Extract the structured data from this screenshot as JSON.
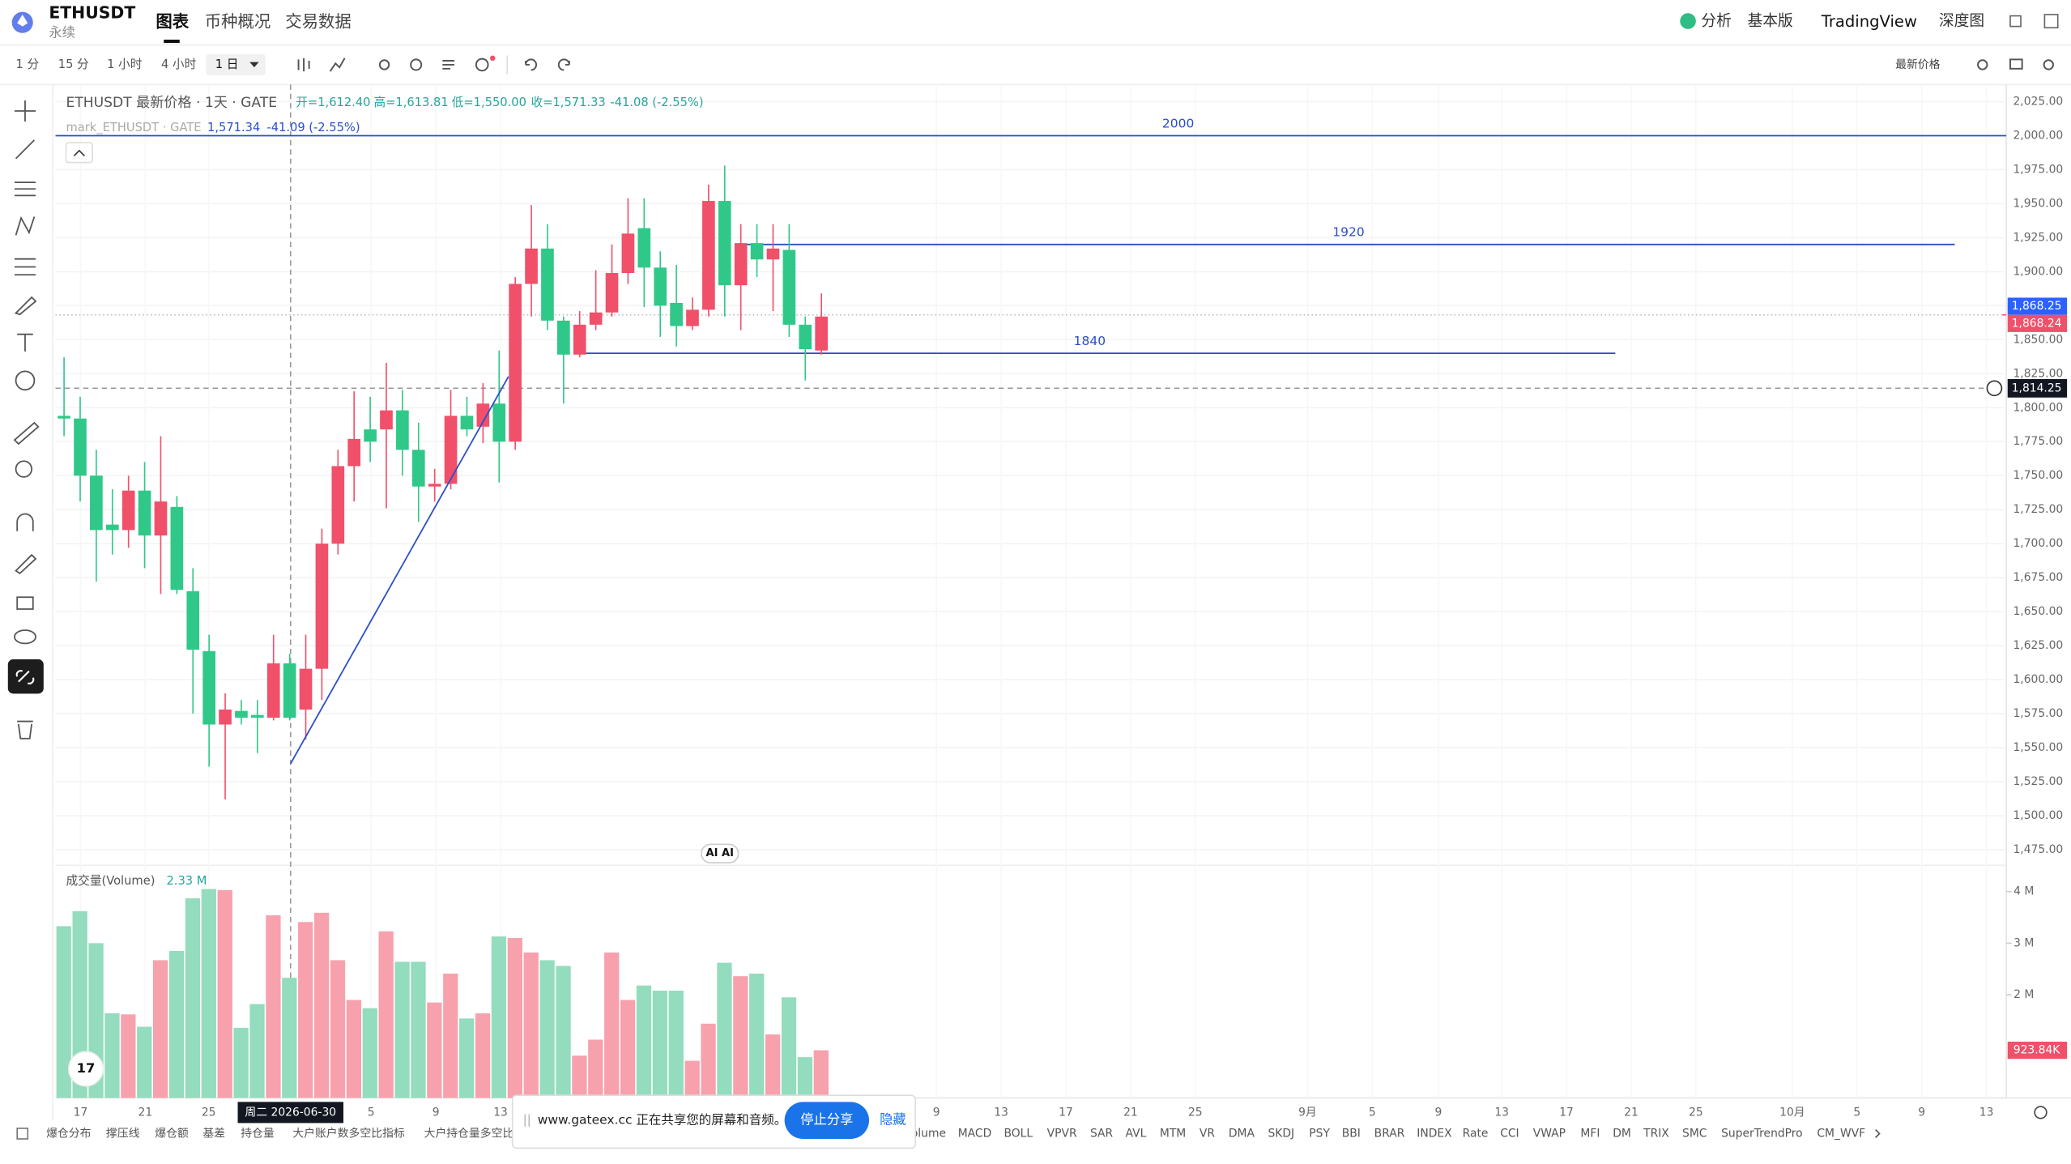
{
  "header": {
    "symbol": "ETHUSDT",
    "contract": "永续",
    "tabs": [
      "图表",
      "币种概况",
      "交易数据"
    ],
    "right": [
      "分析",
      "基本版",
      "TradingView",
      "深度图"
    ]
  },
  "toolbar": {
    "intervals": [
      "1 分",
      "15 分",
      "1 小时",
      "4 小时",
      "1 日"
    ],
    "price_source": "最新价格"
  },
  "legend": {
    "title": "ETHUSDT 最新价格 · 1天 · GATE",
    "ohlc": [
      "开=1,612.40",
      "高=1,613.81",
      "低=1,550.00",
      "收=1,571.33",
      "-41.08 (-2.55%)"
    ],
    "mark_title": "mark_ETHUSDT · GATE",
    "mark_price": "1,571.34",
    "mark_change": "-41.09 (-2.55%)"
  },
  "chart_data": {
    "type": "candlestick",
    "up_color": "#f0506a",
    "down_color": "#30c888",
    "level_color": "#2a4fc9",
    "ylim": [
      1463.4,
      2033.7
    ],
    "yticks": [
      {
        "value": 2025,
        "label": "2,025.00"
      },
      {
        "value": 2000,
        "label": "2,000.00"
      },
      {
        "value": 1975,
        "label": "1,975.00"
      },
      {
        "value": 1950,
        "label": "1,950.00"
      },
      {
        "value": 1925,
        "label": "1,925.00"
      },
      {
        "value": 1900,
        "label": "1,900.00"
      },
      {
        "value": 1875,
        "label": "1,875.00"
      },
      {
        "value": 1850,
        "label": "1,850.00"
      },
      {
        "value": 1825,
        "label": "1,825.00"
      },
      {
        "value": 1800,
        "label": "1,800.00"
      },
      {
        "value": 1775,
        "label": "1,775.00"
      },
      {
        "value": 1750,
        "label": "1,750.00"
      },
      {
        "value": 1725,
        "label": "1,725.00"
      },
      {
        "value": 1700,
        "label": "1,700.00"
      },
      {
        "value": 1675,
        "label": "1,675.00"
      },
      {
        "value": 1650,
        "label": "1,650.00"
      },
      {
        "value": 1625,
        "label": "1,625.00"
      },
      {
        "value": 1600,
        "label": "1,600.00"
      },
      {
        "value": 1575,
        "label": "1,575.00"
      },
      {
        "value": 1550,
        "label": "1,550.00"
      },
      {
        "value": 1525,
        "label": "1,525.00"
      },
      {
        "value": 1500,
        "label": "1,500.00"
      },
      {
        "value": 1475,
        "label": "1,475.00"
      }
    ],
    "open": [
      1794,
      1792,
      1750,
      1714,
      1710,
      1739,
      1706,
      1727,
      1665,
      1621,
      1567,
      1577,
      1574,
      1572,
      1612,
      1578,
      1608,
      1700,
      1757,
      1784,
      1784,
      1798,
      1769,
      1742,
      1744,
      1794,
      1786,
      1803,
      1775,
      1891,
      1917,
      1864,
      1839,
      1861,
      1870,
      1899,
      1932,
      1903,
      1877,
      1860,
      1872,
      1952,
      1890,
      1921,
      1909,
      1916,
      1861,
      1842
    ],
    "high": [
      1837,
      1808,
      1769,
      1740,
      1750,
      1760,
      1779,
      1735,
      1682,
      1633,
      1590,
      1585,
      1585,
      1633,
      1619,
      1633,
      1711,
      1769,
      1812,
      1808,
      1833,
      1813,
      1789,
      1755,
      1813,
      1808,
      1818,
      1842,
      1896,
      1949,
      1935,
      1867,
      1871,
      1901,
      1920,
      1954,
      1954,
      1915,
      1905,
      1881,
      1964,
      1978,
      1935,
      1935,
      1935,
      1935,
      1867,
      1884
    ],
    "low": [
      1779,
      1731,
      1672,
      1692,
      1697,
      1682,
      1663,
      1663,
      1575,
      1536,
      1512,
      1567,
      1546,
      1570,
      1570,
      1556,
      1585,
      1692,
      1731,
      1760,
      1726,
      1750,
      1716,
      1731,
      1740,
      1779,
      1774,
      1745,
      1769,
      1867,
      1857,
      1803,
      1837,
      1857,
      1867,
      1891,
      1874,
      1852,
      1845,
      1857,
      1867,
      1867,
      1857,
      1896,
      1871,
      1852,
      1820,
      1839
    ],
    "close": [
      1792,
      1750,
      1710,
      1710,
      1739,
      1706,
      1731,
      1666,
      1622,
      1567,
      1578,
      1572,
      1572,
      1612,
      1572,
      1608,
      1700,
      1757,
      1777,
      1775,
      1798,
      1769,
      1742,
      1744,
      1794,
      1784,
      1803,
      1775,
      1891,
      1917,
      1864,
      1839,
      1861,
      1870,
      1899,
      1928,
      1903,
      1875,
      1860,
      1872,
      1952,
      1890,
      1921,
      1909,
      1917,
      1861,
      1843,
      1867
    ],
    "levels": [
      2000,
      1920,
      1840
    ],
    "price_tags": [
      {
        "value": 1868.25,
        "label": "1,868.25",
        "color": "#2962ff"
      },
      {
        "value": 1868.24,
        "label": "1,868.24",
        "color": "#f0506a"
      }
    ],
    "crosshair": {
      "value": 1814.25,
      "label": "1,814.25",
      "time": "周二 2026-06-30"
    },
    "x_labels": [
      "17",
      "21",
      "25",
      "5",
      "9",
      "13",
      "9",
      "13",
      "17",
      "21",
      "25",
      "9月",
      "5",
      "9",
      "13",
      "17",
      "21",
      "25",
      "10月",
      "5",
      "9",
      "13"
    ],
    "volume": {
      "title": "成交量(Volume)",
      "value_label": "2.33 M",
      "ylim": [
        0,
        4.38
      ],
      "yticks": [
        {
          "value": 4,
          "label": "4 M"
        },
        {
          "value": 3,
          "label": "3 M"
        },
        {
          "value": 2,
          "label": "2 M"
        }
      ],
      "values": [
        3.33,
        3.62,
        3.0,
        1.64,
        1.62,
        1.38,
        2.67,
        2.85,
        3.87,
        4.05,
        4.03,
        1.36,
        1.82,
        3.54,
        2.33,
        3.41,
        3.59,
        2.67,
        1.9,
        1.74,
        3.23,
        2.64,
        2.64,
        1.85,
        2.41,
        1.54,
        1.64,
        3.13,
        3.1,
        2.82,
        2.67,
        2.56,
        0.82,
        1.13,
        2.82,
        1.9,
        2.18,
        2.08,
        2.08,
        0.72,
        1.44,
        2.62,
        2.36,
        2.41,
        1.23,
        1.95,
        0.79,
        0.92384
      ],
      "last": {
        "value": 0.92384,
        "label": "923.84K"
      }
    }
  },
  "indicators": [
    "爆仓分布",
    "撑压线",
    "爆仓额",
    "基差",
    "持仓量",
    "大户账户数多空比指标",
    "大户持仓量多空比",
    "olume",
    "MACD",
    "BOLL",
    "VPVR",
    "SAR",
    "AVL",
    "MTM",
    "VR",
    "DMA",
    "SKDJ",
    "PSY",
    "BBI",
    "BRAR",
    "INDEX",
    "Rate",
    "CCI",
    "VWAP",
    "MFI",
    "DM",
    "TRIX",
    "SMC",
    "SuperTrendPro",
    "CM_WVF"
  ],
  "share_banner": {
    "message": "www.gateex.cc 正在共享您的屏幕和音频。",
    "stop": "停止分享",
    "hide": "隐藏"
  },
  "ai_badge": "AI AI"
}
